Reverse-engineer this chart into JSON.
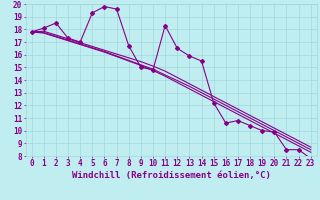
{
  "xlabel": "Windchill (Refroidissement éolien,°C)",
  "xlim": [
    -0.5,
    23.5
  ],
  "ylim": [
    8,
    20
  ],
  "xtick_labels": [
    "0",
    "1",
    "2",
    "3",
    "4",
    "5",
    "6",
    "7",
    "8",
    "9",
    "10",
    "11",
    "12",
    "13",
    "14",
    "15",
    "16",
    "17",
    "18",
    "19",
    "20",
    "21",
    "22",
    "23"
  ],
  "ytick_labels": [
    "8",
    "9",
    "10",
    "11",
    "12",
    "13",
    "14",
    "15",
    "16",
    "17",
    "18",
    "19",
    "20"
  ],
  "background_color": "#c0eef0",
  "grid_color": "#a0d8dc",
  "line_color": "#880088",
  "line1": [
    17.8,
    18.1,
    18.5,
    17.3,
    17.0,
    19.3,
    19.8,
    19.6,
    16.7,
    15.0,
    14.8,
    18.3,
    16.5,
    15.9,
    15.5,
    12.2,
    10.6,
    10.8,
    10.4,
    10.0,
    9.9,
    8.5,
    8.5,
    7.8
  ],
  "line2": [
    17.8,
    17.85,
    17.55,
    17.25,
    16.95,
    16.65,
    16.35,
    16.05,
    15.75,
    15.45,
    15.1,
    14.7,
    14.2,
    13.7,
    13.2,
    12.7,
    12.2,
    11.7,
    11.2,
    10.7,
    10.2,
    9.7,
    9.2,
    8.7
  ],
  "line3": [
    17.8,
    17.75,
    17.45,
    17.15,
    16.85,
    16.55,
    16.25,
    15.9,
    15.55,
    15.2,
    14.85,
    14.4,
    13.95,
    13.5,
    13.0,
    12.5,
    12.0,
    11.5,
    11.0,
    10.5,
    10.0,
    9.5,
    9.0,
    8.5
  ],
  "line4": [
    17.8,
    17.7,
    17.4,
    17.1,
    16.8,
    16.5,
    16.2,
    15.85,
    15.5,
    15.15,
    14.75,
    14.3,
    13.8,
    13.3,
    12.8,
    12.3,
    11.8,
    11.3,
    10.8,
    10.3,
    9.8,
    9.3,
    8.8,
    8.3
  ],
  "fontsize_xlabel": 6.5,
  "fontsize_ticks": 5.5,
  "markersize": 2.0,
  "linewidth": 0.8
}
